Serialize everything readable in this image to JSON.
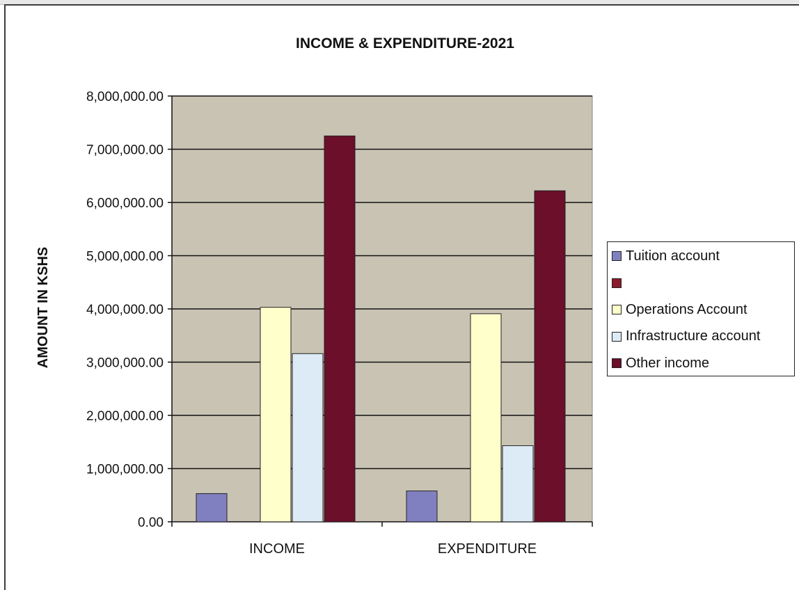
{
  "chart_data": {
    "type": "bar",
    "title": "INCOME & EXPENDITURE-2021",
    "xlabel": "",
    "ylabel": "AMOUNT IN KSHS",
    "categories": [
      "INCOME",
      "EXPENDITURE"
    ],
    "ylim": [
      0,
      8000000
    ],
    "yticks": [
      0,
      1000000,
      2000000,
      3000000,
      4000000,
      5000000,
      6000000,
      7000000,
      8000000
    ],
    "ytick_labels": [
      "0.00",
      "1,000,000.00",
      "2,000,000.00",
      "3,000,000.00",
      "4,000,000.00",
      "5,000,000.00",
      "6,000,000.00",
      "7,000,000.00",
      "8,000,000.00"
    ],
    "grid": true,
    "legend_position": "right",
    "series": [
      {
        "name": "Tuition account",
        "color": "#8080c0",
        "values": [
          530000,
          580000
        ]
      },
      {
        "name": "",
        "color": "#8b1a2a",
        "values": [
          0,
          0
        ]
      },
      {
        "name": "Operations Account",
        "color": "#ffffcc",
        "values": [
          4030000,
          3910000
        ]
      },
      {
        "name": "Infrastructure account",
        "color": "#dcebf5",
        "values": [
          3160000,
          1430000
        ]
      },
      {
        "name": "Other income",
        "color": "#6b0f2a",
        "values": [
          7250000,
          6220000
        ]
      }
    ],
    "plot_background": "#c9c3b4"
  }
}
